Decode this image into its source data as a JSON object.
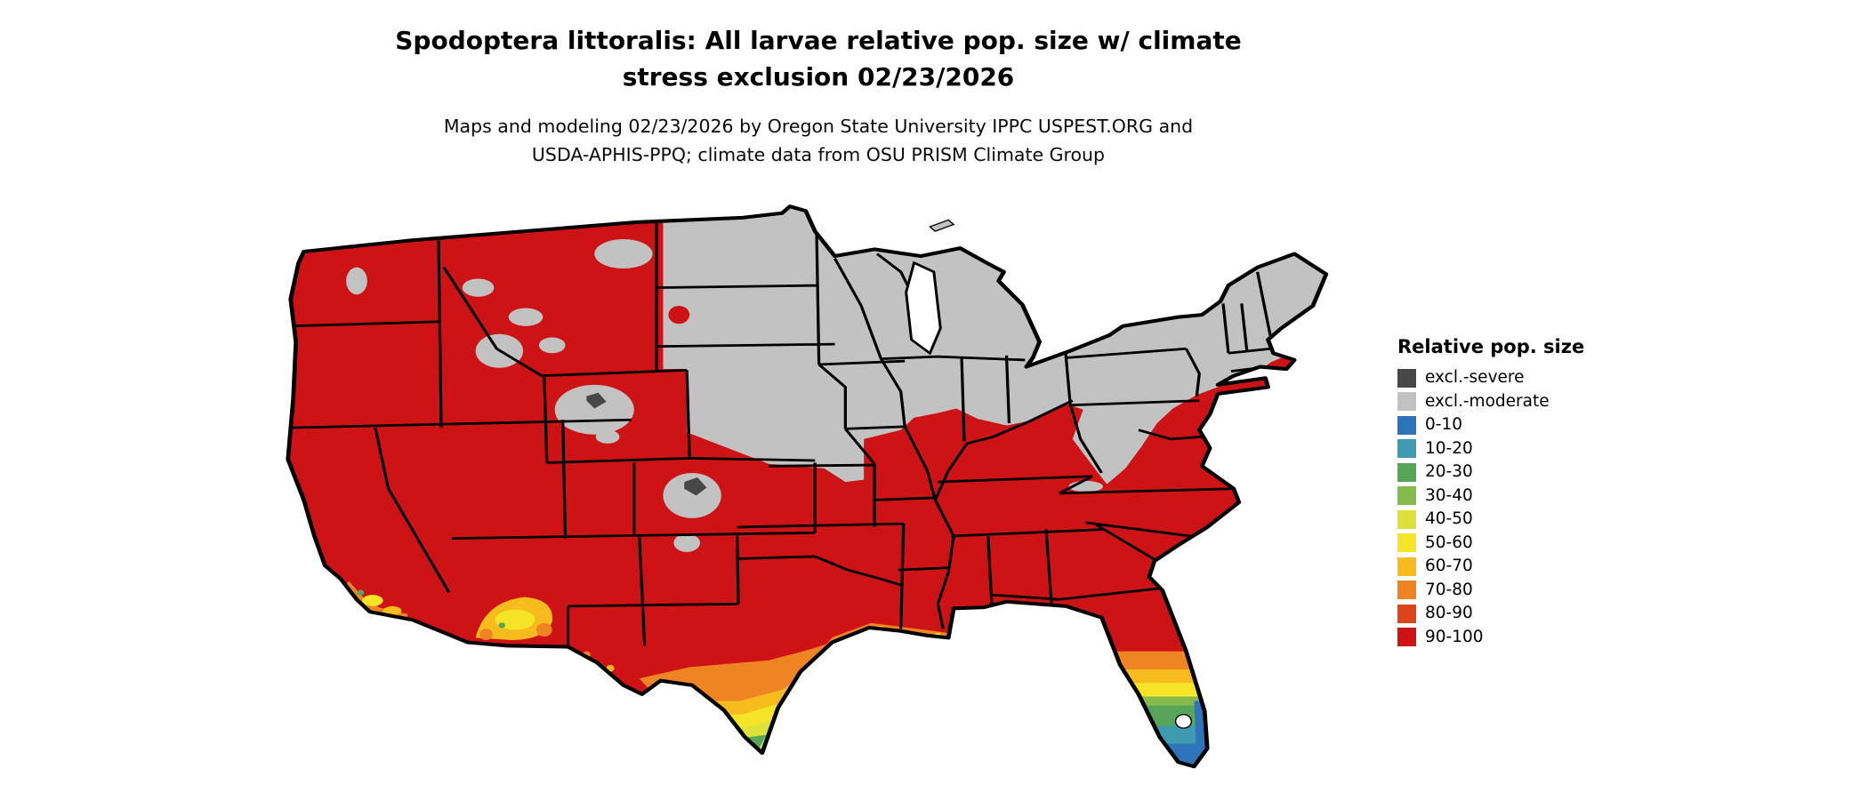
{
  "header": {
    "title_lines": [
      "Spodoptera littoralis: All larvae relative pop. size w/ climate",
      "stress exclusion 02/23/2026"
    ],
    "subtitle_lines": [
      "Maps and modeling 02/23/2026 by Oregon State University IPPC USPEST.ORG and",
      "USDA-APHIS-PPQ; climate data from OSU PRISM Climate Group"
    ]
  },
  "legend": {
    "title": "Relative pop. size",
    "items": [
      {
        "label": "excl.-severe",
        "color": "#474747"
      },
      {
        "label": "excl.-moderate",
        "color": "#c2c2c2"
      },
      {
        "label": "0-10",
        "color": "#2d74bb"
      },
      {
        "label": "10-20",
        "color": "#3e9aae"
      },
      {
        "label": "20-30",
        "color": "#57a559"
      },
      {
        "label": "30-40",
        "color": "#85ba4d"
      },
      {
        "label": "40-50",
        "color": "#dce23a"
      },
      {
        "label": "50-60",
        "color": "#f6e426"
      },
      {
        "label": "60-70",
        "color": "#f6bb1d"
      },
      {
        "label": "70-80",
        "color": "#ef8423"
      },
      {
        "label": "80-90",
        "color": "#dc4419"
      },
      {
        "label": "90-100",
        "color": "#cd1316"
      }
    ]
  }
}
